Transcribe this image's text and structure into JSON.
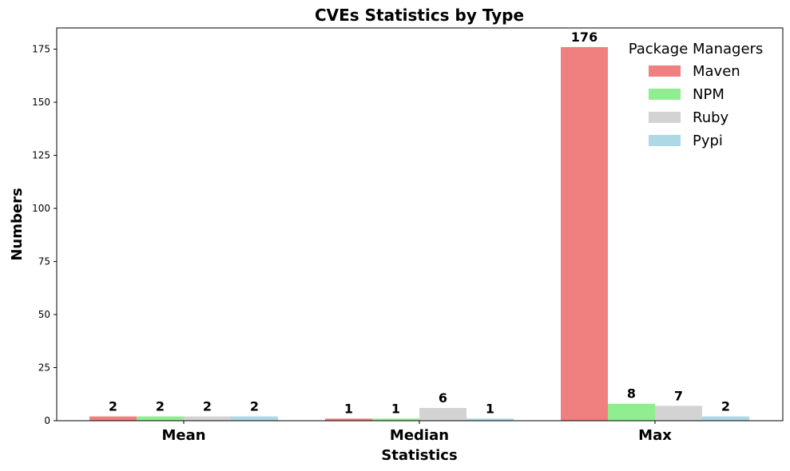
{
  "chart_data": {
    "type": "bar",
    "title": "CVEs Statistics by Type",
    "xlabel": "Statistics",
    "ylabel": "Numbers",
    "categories": [
      "Mean",
      "Median",
      "Max"
    ],
    "ylim": [
      0,
      185
    ],
    "yticks": [
      0,
      25,
      50,
      75,
      100,
      125,
      150,
      175
    ],
    "grid": false,
    "legend": {
      "title": "Package Managers",
      "placement": "top-right"
    },
    "series": [
      {
        "name": "Maven",
        "color": "#f08080",
        "values": [
          2,
          1,
          176
        ]
      },
      {
        "name": "NPM",
        "color": "#90ee90",
        "values": [
          2,
          1,
          8
        ]
      },
      {
        "name": "Ruby",
        "color": "#d3d3d3",
        "values": [
          2,
          6,
          7
        ]
      },
      {
        "name": "Pypi",
        "color": "#add8e6",
        "values": [
          2,
          1,
          2
        ]
      }
    ]
  }
}
